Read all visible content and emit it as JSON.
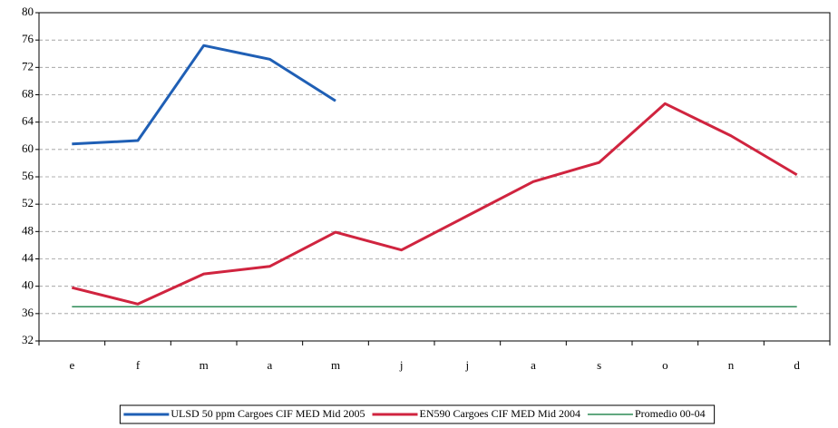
{
  "chart_data": {
    "type": "line",
    "categories": [
      "e",
      "f",
      "m",
      "a",
      "m",
      "j",
      "j",
      "a",
      "s",
      "o",
      "n",
      "d"
    ],
    "series": [
      {
        "name": "ULSD 50 ppm Cargoes CIF MED Mid 2005",
        "color": "#1f5fb5",
        "values": [
          60.8,
          61.3,
          75.2,
          73.2,
          67.1,
          null,
          null,
          null,
          null,
          null,
          null,
          null
        ]
      },
      {
        "name": "EN590 Cargoes CIF MED Mid 2004",
        "color": "#d0243f",
        "values": [
          39.8,
          37.4,
          41.8,
          42.9,
          47.9,
          45.3,
          50.3,
          55.3,
          58.1,
          66.7,
          62,
          56.3
        ]
      },
      {
        "name": "Promedio 00-04",
        "color": "#2e8b57",
        "values": [
          37,
          37,
          37,
          37,
          37,
          37,
          37,
          37,
          37,
          37,
          37,
          37
        ]
      }
    ],
    "ylim": [
      32,
      80
    ],
    "yticks": [
      32,
      36,
      40,
      44,
      48,
      52,
      56,
      60,
      64,
      68,
      72,
      76,
      80
    ],
    "grid": true
  }
}
